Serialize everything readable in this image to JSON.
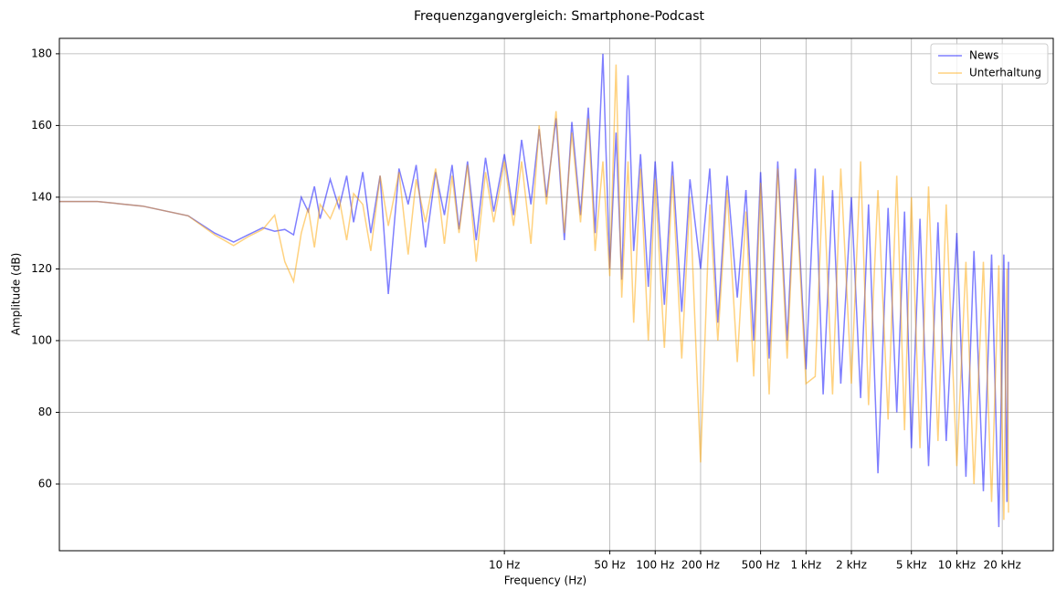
{
  "chart_data": {
    "type": "line",
    "title": "Frequenzgangvergleich: Smartphone-Podcast",
    "xlabel": "Frequency (Hz)",
    "ylabel": "Amplitude (dB)",
    "xscale": "log",
    "grid": true,
    "legend": "upper right",
    "xlim": [
      0.0112,
      43600
    ],
    "ylim": [
      41.4,
      184.3
    ],
    "xticks": [
      {
        "value": 10,
        "label": "10 Hz"
      },
      {
        "value": 50,
        "label": "50 Hz"
      },
      {
        "value": 100,
        "label": "100 Hz"
      },
      {
        "value": 200,
        "label": "200 Hz"
      },
      {
        "value": 500,
        "label": "500 Hz"
      },
      {
        "value": 1000,
        "label": "1 kHz"
      },
      {
        "value": 2000,
        "label": "2 kHz"
      },
      {
        "value": 5000,
        "label": "5 kHz"
      },
      {
        "value": 10000,
        "label": "10 kHz"
      },
      {
        "value": 20000,
        "label": "20 kHz"
      }
    ],
    "yticks": [
      60,
      80,
      100,
      120,
      140,
      160,
      180
    ],
    "x": [
      0.0112,
      0.02,
      0.04,
      0.08,
      0.12,
      0.16,
      0.2,
      0.25,
      0.3,
      0.35,
      0.4,
      0.45,
      0.5,
      0.55,
      0.6,
      0.7,
      0.8,
      0.9,
      1,
      1.15,
      1.3,
      1.5,
      1.7,
      2,
      2.3,
      2.6,
      3,
      3.5,
      4,
      4.5,
      5,
      5.7,
      6.5,
      7.5,
      8.5,
      10,
      11.5,
      13,
      15,
      17,
      19,
      22,
      25,
      28,
      32,
      36,
      40,
      45,
      50,
      55,
      60,
      66,
      72,
      80,
      90,
      100,
      115,
      130,
      150,
      170,
      200,
      230,
      260,
      300,
      350,
      400,
      450,
      500,
      570,
      650,
      750,
      850,
      1000,
      1150,
      1300,
      1500,
      1700,
      2000,
      2300,
      2600,
      3000,
      3500,
      4000,
      4500,
      5000,
      5700,
      6500,
      7500,
      8500,
      10000,
      11500,
      13000,
      15000,
      17000,
      19000,
      20500,
      21500,
      22000
    ],
    "series": [
      {
        "name": "News",
        "color": "#0000ff",
        "values": [
          138.8,
          138.8,
          137.5,
          134.8,
          130,
          127.5,
          129.5,
          131.5,
          130.5,
          131,
          129.5,
          140,
          136,
          143,
          134,
          145,
          137,
          146,
          133,
          147,
          130,
          146,
          113,
          148,
          138,
          149,
          126,
          147,
          135,
          149,
          131,
          150,
          128,
          151,
          136,
          152,
          135,
          156,
          138,
          159,
          140,
          162,
          128,
          161,
          135,
          165,
          130,
          180,
          120,
          158,
          117,
          174,
          125,
          152,
          115,
          150,
          110,
          150,
          108,
          145,
          120,
          148,
          105,
          146,
          112,
          142,
          100,
          147,
          95,
          150,
          100,
          148,
          92,
          148,
          85,
          142,
          88,
          140,
          84,
          138,
          63,
          137,
          80,
          136,
          70,
          134,
          65,
          133,
          72,
          130,
          62,
          125,
          58,
          124,
          48,
          124,
          55,
          122
        ]
      },
      {
        "name": "Unterhaltung",
        "color": "#ffa500",
        "values": [
          138.8,
          138.8,
          137.5,
          134.8,
          129.5,
          126.5,
          129,
          131,
          135,
          122,
          116.5,
          130,
          137,
          126,
          138,
          134,
          140,
          128,
          141,
          138,
          125,
          146,
          132,
          147,
          124,
          145,
          133,
          148,
          127,
          146,
          130,
          149,
          122,
          147,
          133,
          150,
          132,
          150,
          127,
          160,
          138,
          164,
          130,
          158,
          133,
          162,
          125,
          150,
          118,
          177,
          112,
          150,
          105,
          148,
          100,
          145,
          98,
          146,
          95,
          140,
          66,
          138,
          100,
          142,
          94,
          136,
          90,
          144,
          85,
          148,
          95,
          145,
          88,
          90,
          146,
          85,
          148,
          88,
          150,
          82,
          142,
          78,
          146,
          75,
          140,
          70,
          143,
          72,
          138,
          65,
          122,
          60,
          122,
          55,
          121,
          50,
          120,
          52
        ]
      }
    ]
  }
}
